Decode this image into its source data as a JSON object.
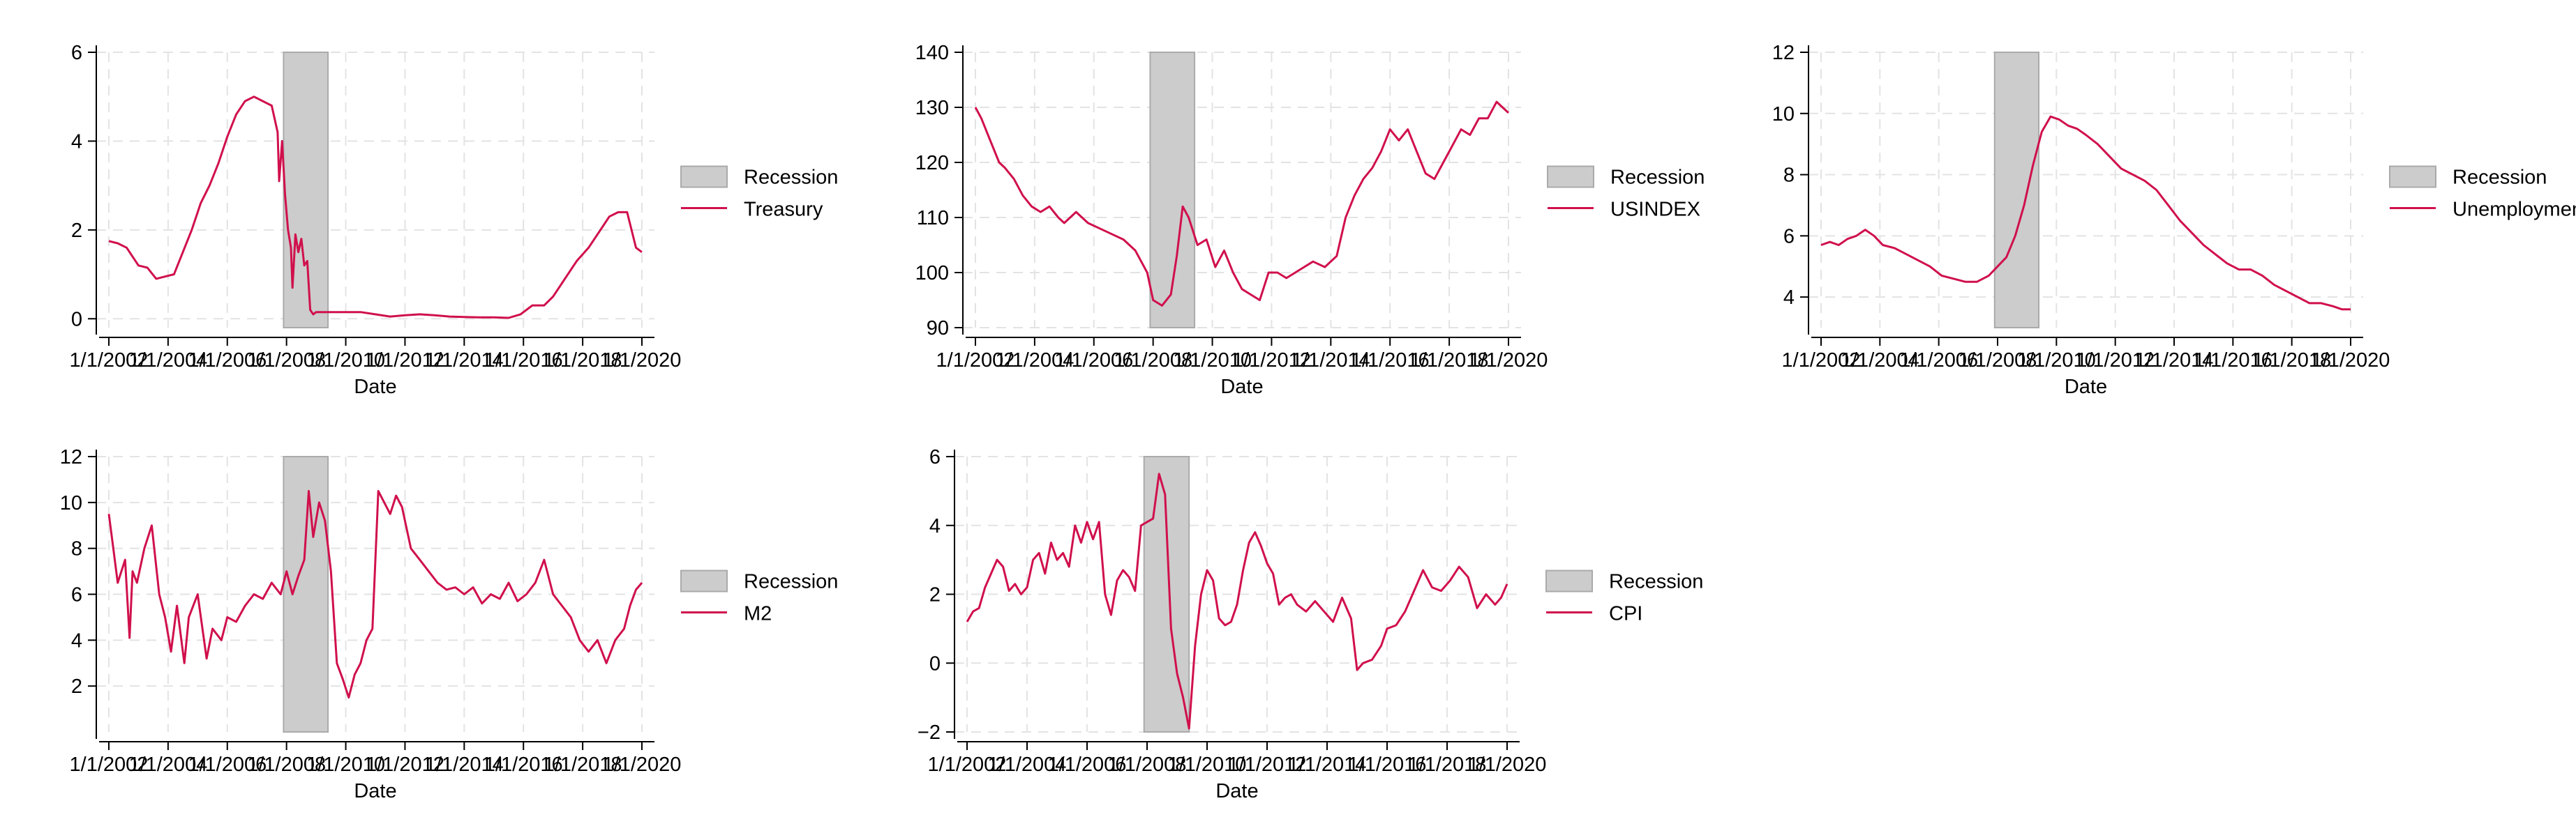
{
  "colors": {
    "series": "#d0104c",
    "recession_fill": "#cccccc",
    "recession_stroke": "#aaaaaa",
    "grid": "#e3e3e3",
    "axis": "#000000",
    "background": "#ffffff"
  },
  "chart_data": [
    {
      "type": "line",
      "xlabel": "Date",
      "x_tick_labels": [
        "1/1/2002",
        "1/1/2004",
        "1/1/2006",
        "1/1/2008",
        "1/1/2010",
        "1/1/2012",
        "1/1/2014",
        "1/1/2016",
        "1/1/2018",
        "1/1/2020"
      ],
      "xlim": [
        2002.0,
        2020.0
      ],
      "ylim": [
        -0.2,
        6.0
      ],
      "yticks": [
        0,
        2,
        4,
        6
      ],
      "grid": true,
      "legend_position": "right",
      "legend": [
        "Recession",
        "Treasury"
      ],
      "recession": {
        "start": 2007.9,
        "end": 2009.4
      },
      "series": [
        {
          "name": "Treasury",
          "x": [
            2002.0,
            2002.3,
            2002.6,
            2002.9,
            2003.0,
            2003.3,
            2003.6,
            2003.9,
            2004.2,
            2004.5,
            2004.8,
            2005.1,
            2005.4,
            2005.7,
            2006.0,
            2006.3,
            2006.6,
            2006.9,
            2007.2,
            2007.5,
            2007.7,
            2007.75,
            2007.85,
            2007.95,
            2008.05,
            2008.15,
            2008.2,
            2008.3,
            2008.4,
            2008.5,
            2008.6,
            2008.7,
            2008.8,
            2008.9,
            2009.0,
            2009.5,
            2010.0,
            2010.5,
            2011.0,
            2011.5,
            2012.0,
            2012.5,
            2013.0,
            2013.5,
            2014.0,
            2014.5,
            2015.0,
            2015.5,
            2015.9,
            2016.3,
            2016.7,
            2017.0,
            2017.4,
            2017.8,
            2018.2,
            2018.6,
            2018.9,
            2019.2,
            2019.5,
            2019.8,
            2020.0
          ],
          "y": [
            1.75,
            1.7,
            1.6,
            1.3,
            1.2,
            1.15,
            0.9,
            0.95,
            1.0,
            1.5,
            2.0,
            2.6,
            3.0,
            3.5,
            4.1,
            4.6,
            4.9,
            5.0,
            4.9,
            4.8,
            4.2,
            3.1,
            4.0,
            2.8,
            2.0,
            1.6,
            0.7,
            1.9,
            1.5,
            1.8,
            1.2,
            1.3,
            0.2,
            0.1,
            0.15,
            0.15,
            0.15,
            0.15,
            0.1,
            0.05,
            0.08,
            0.1,
            0.08,
            0.05,
            0.04,
            0.03,
            0.03,
            0.02,
            0.1,
            0.3,
            0.3,
            0.5,
            0.9,
            1.3,
            1.6,
            2.0,
            2.3,
            2.4,
            2.4,
            1.6,
            1.5
          ]
        }
      ]
    },
    {
      "type": "line",
      "xlabel": "Date",
      "x_tick_labels": [
        "1/1/2002",
        "1/1/2004",
        "1/1/2006",
        "1/1/2008",
        "1/1/2010",
        "1/1/2012",
        "1/1/2014",
        "1/1/2016",
        "1/1/2018",
        "1/1/2020"
      ],
      "xlim": [
        2002.0,
        2020.0
      ],
      "ylim": [
        90,
        140
      ],
      "yticks": [
        90,
        100,
        110,
        120,
        130,
        140
      ],
      "grid": true,
      "legend_position": "right",
      "legend": [
        "Recession",
        "USINDEX"
      ],
      "recession": {
        "start": 2007.9,
        "end": 2009.4
      },
      "series": [
        {
          "name": "USINDEX",
          "x": [
            2002.0,
            2002.2,
            2002.5,
            2002.8,
            2003.0,
            2003.3,
            2003.6,
            2003.9,
            2004.2,
            2004.5,
            2004.8,
            2005.0,
            2005.4,
            2005.8,
            2006.2,
            2006.6,
            2007.0,
            2007.4,
            2007.8,
            2008.0,
            2008.3,
            2008.6,
            2008.8,
            2009.0,
            2009.2,
            2009.5,
            2009.8,
            2010.1,
            2010.4,
            2010.7,
            2011.0,
            2011.3,
            2011.6,
            2011.9,
            2012.2,
            2012.5,
            2012.8,
            2013.1,
            2013.4,
            2013.8,
            2014.2,
            2014.5,
            2014.8,
            2015.1,
            2015.4,
            2015.7,
            2016.0,
            2016.3,
            2016.6,
            2016.9,
            2017.2,
            2017.5,
            2017.8,
            2018.1,
            2018.4,
            2018.7,
            2019.0,
            2019.3,
            2019.6,
            2019.8,
            2020.0
          ],
          "y": [
            130,
            128,
            124,
            120,
            119,
            117,
            114,
            112,
            111,
            112,
            110,
            109,
            111,
            109,
            108,
            107,
            106,
            104,
            100,
            95,
            94,
            96,
            103,
            112,
            110,
            105,
            106,
            101,
            104,
            100,
            97,
            96,
            95,
            100,
            100,
            99,
            100,
            101,
            102,
            101,
            103,
            110,
            114,
            117,
            119,
            122,
            126,
            124,
            126,
            122,
            118,
            117,
            120,
            123,
            126,
            125,
            128,
            128,
            131,
            130,
            129
          ]
        }
      ]
    },
    {
      "type": "line",
      "xlabel": "Date",
      "x_tick_labels": [
        "1/1/2002",
        "1/1/2004",
        "1/1/2006",
        "1/1/2008",
        "1/1/2010",
        "1/1/2012",
        "1/1/2014",
        "1/1/2016",
        "1/1/2018",
        "1/1/2020"
      ],
      "xlim": [
        2002.0,
        2020.0
      ],
      "ylim": [
        3.0,
        12.0
      ],
      "yticks": [
        4,
        6,
        8,
        10,
        12
      ],
      "grid": true,
      "legend_position": "right",
      "legend": [
        "Recession",
        "Unemployment"
      ],
      "recession": {
        "start": 2007.9,
        "end": 2009.4
      },
      "series": [
        {
          "name": "Unemployment",
          "x": [
            2002.0,
            2002.3,
            2002.6,
            2002.9,
            2003.2,
            2003.5,
            2003.8,
            2004.1,
            2004.5,
            2004.9,
            2005.3,
            2005.7,
            2006.1,
            2006.5,
            2006.9,
            2007.3,
            2007.7,
            2008.0,
            2008.3,
            2008.6,
            2008.9,
            2009.2,
            2009.5,
            2009.8,
            2010.1,
            2010.4,
            2010.7,
            2011.0,
            2011.4,
            2011.8,
            2012.2,
            2012.6,
            2013.0,
            2013.4,
            2013.8,
            2014.2,
            2014.6,
            2015.0,
            2015.4,
            2015.8,
            2016.2,
            2016.6,
            2017.0,
            2017.4,
            2017.8,
            2018.2,
            2018.6,
            2019.0,
            2019.4,
            2019.7,
            2020.0
          ],
          "y": [
            5.7,
            5.8,
            5.7,
            5.9,
            6.0,
            6.2,
            6.0,
            5.7,
            5.6,
            5.4,
            5.2,
            5.0,
            4.7,
            4.6,
            4.5,
            4.5,
            4.7,
            5.0,
            5.3,
            6.0,
            7.0,
            8.3,
            9.4,
            9.9,
            9.8,
            9.6,
            9.5,
            9.3,
            9.0,
            8.6,
            8.2,
            8.0,
            7.8,
            7.5,
            7.0,
            6.5,
            6.1,
            5.7,
            5.4,
            5.1,
            4.9,
            4.9,
            4.7,
            4.4,
            4.2,
            4.0,
            3.8,
            3.8,
            3.7,
            3.6,
            3.6
          ]
        }
      ]
    },
    {
      "type": "line",
      "xlabel": "Date",
      "x_tick_labels": [
        "1/1/2002",
        "1/1/2004",
        "1/1/2006",
        "1/1/2008",
        "1/1/2010",
        "1/1/2012",
        "1/1/2014",
        "1/1/2016",
        "1/1/2018",
        "1/1/2020"
      ],
      "xlim": [
        2002.0,
        2020.0
      ],
      "ylim": [
        0.0,
        12.0
      ],
      "yticks": [
        2,
        4,
        6,
        8,
        10,
        12
      ],
      "grid": true,
      "legend_position": "right",
      "legend": [
        "Recession",
        "M2"
      ],
      "recession": {
        "start": 2007.9,
        "end": 2009.4
      },
      "series": [
        {
          "name": "M2",
          "x": [
            2002.0,
            2002.15,
            2002.3,
            2002.55,
            2002.7,
            2002.8,
            2002.95,
            2003.2,
            2003.45,
            2003.7,
            2003.9,
            2004.1,
            2004.3,
            2004.55,
            2004.7,
            2005.0,
            2005.3,
            2005.5,
            2005.8,
            2006.0,
            2006.3,
            2006.6,
            2006.9,
            2007.2,
            2007.5,
            2007.8,
            2008.0,
            2008.2,
            2008.4,
            2008.6,
            2008.75,
            2008.9,
            2009.1,
            2009.3,
            2009.5,
            2009.7,
            2009.9,
            2010.1,
            2010.3,
            2010.5,
            2010.7,
            2010.9,
            2011.1,
            2011.3,
            2011.5,
            2011.7,
            2011.9,
            2012.2,
            2012.5,
            2012.8,
            2013.1,
            2013.4,
            2013.7,
            2014.0,
            2014.3,
            2014.6,
            2014.9,
            2015.2,
            2015.5,
            2015.8,
            2016.1,
            2016.4,
            2016.7,
            2017.0,
            2017.3,
            2017.6,
            2017.9,
            2018.2,
            2018.5,
            2018.8,
            2019.1,
            2019.4,
            2019.6,
            2019.8,
            2020.0
          ],
          "y": [
            9.5,
            8.0,
            6.5,
            7.5,
            4.1,
            7.0,
            6.5,
            8.0,
            9.0,
            6.0,
            5.0,
            3.5,
            5.5,
            3.0,
            5.0,
            6.0,
            3.2,
            4.5,
            4.0,
            5.0,
            4.8,
            5.5,
            6.0,
            5.8,
            6.5,
            6.0,
            7.0,
            6.0,
            6.8,
            7.5,
            10.5,
            8.5,
            10.0,
            9.2,
            7.0,
            3.0,
            2.3,
            1.5,
            2.5,
            3.0,
            4.0,
            4.5,
            10.5,
            10.0,
            9.5,
            10.3,
            9.8,
            8.0,
            7.5,
            7.0,
            6.5,
            6.2,
            6.3,
            6.0,
            6.3,
            5.6,
            6.0,
            5.8,
            6.5,
            5.7,
            6.0,
            6.5,
            7.5,
            6.0,
            5.5,
            5.0,
            4.0,
            3.5,
            4.0,
            3.0,
            4.0,
            4.5,
            5.5,
            6.2,
            6.5
          ]
        }
      ]
    },
    {
      "type": "line",
      "xlabel": "Date",
      "x_tick_labels": [
        "1/1/2002",
        "1/1/2004",
        "1/1/2006",
        "1/1/2008",
        "1/1/2010",
        "1/1/2012",
        "1/1/2014",
        "1/1/2016",
        "1/1/2018",
        "1/1/2020"
      ],
      "xlim": [
        2002.0,
        2020.0
      ],
      "ylim": [
        -2.0,
        6.0
      ],
      "yticks": [
        -2,
        0,
        2,
        4,
        6
      ],
      "grid": true,
      "legend_position": "right",
      "legend": [
        "Recession",
        "CPI"
      ],
      "recession": {
        "start": 2007.9,
        "end": 2009.4
      },
      "series": [
        {
          "name": "CPI",
          "x": [
            2002.0,
            2002.2,
            2002.4,
            2002.6,
            2002.8,
            2003.0,
            2003.2,
            2003.4,
            2003.6,
            2003.8,
            2004.0,
            2004.2,
            2004.4,
            2004.6,
            2004.8,
            2005.0,
            2005.2,
            2005.4,
            2005.6,
            2005.8,
            2006.0,
            2006.2,
            2006.4,
            2006.6,
            2006.8,
            2007.0,
            2007.2,
            2007.4,
            2007.6,
            2007.8,
            2008.0,
            2008.2,
            2008.4,
            2008.6,
            2008.8,
            2009.0,
            2009.2,
            2009.4,
            2009.6,
            2009.8,
            2010.0,
            2010.2,
            2010.4,
            2010.6,
            2010.8,
            2011.0,
            2011.2,
            2011.4,
            2011.6,
            2011.8,
            2012.0,
            2012.2,
            2012.4,
            2012.6,
            2012.8,
            2013.0,
            2013.3,
            2013.6,
            2013.9,
            2014.2,
            2014.5,
            2014.8,
            2015.0,
            2015.2,
            2015.5,
            2015.8,
            2016.0,
            2016.3,
            2016.6,
            2016.9,
            2017.2,
            2017.5,
            2017.8,
            2018.1,
            2018.4,
            2018.7,
            2019.0,
            2019.3,
            2019.6,
            2019.8,
            2020.0
          ],
          "y": [
            1.2,
            1.5,
            1.6,
            2.2,
            2.6,
            3.0,
            2.8,
            2.1,
            2.3,
            2.0,
            2.2,
            3.0,
            3.2,
            2.6,
            3.5,
            3.0,
            3.2,
            2.8,
            4.0,
            3.5,
            4.1,
            3.6,
            4.1,
            2.0,
            1.4,
            2.4,
            2.7,
            2.5,
            2.1,
            4.0,
            4.1,
            4.2,
            5.5,
            4.9,
            1.0,
            -0.3,
            -1.0,
            -1.9,
            0.5,
            2.0,
            2.7,
            2.4,
            1.3,
            1.1,
            1.2,
            1.7,
            2.7,
            3.5,
            3.8,
            3.4,
            2.9,
            2.6,
            1.7,
            1.9,
            2.0,
            1.7,
            1.5,
            1.8,
            1.5,
            1.2,
            1.9,
            1.3,
            -0.2,
            0.0,
            0.1,
            0.5,
            1.0,
            1.1,
            1.5,
            2.1,
            2.7,
            2.2,
            2.1,
            2.4,
            2.8,
            2.5,
            1.6,
            2.0,
            1.7,
            1.9,
            2.3
          ]
        }
      ]
    }
  ]
}
